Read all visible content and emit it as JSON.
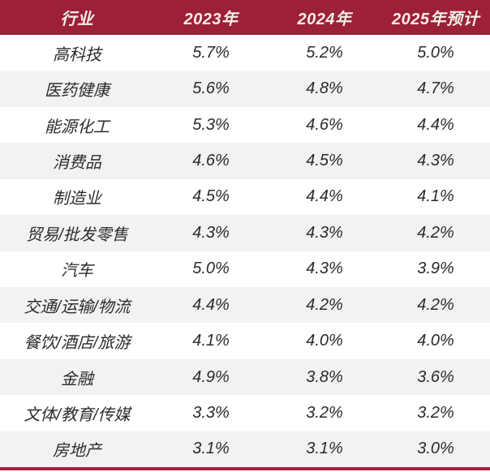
{
  "chart_data": {
    "type": "table",
    "title": "",
    "unit": "%",
    "columns": [
      "行业",
      "2023年",
      "2024年",
      "2025年预计"
    ],
    "rows": [
      [
        "高科技",
        "5.7%",
        "5.2%",
        "5.0%"
      ],
      [
        "医药健康",
        "5.6%",
        "4.8%",
        "4.7%"
      ],
      [
        "能源化工",
        "5.3%",
        "4.6%",
        "4.4%"
      ],
      [
        "消费品",
        "4.6%",
        "4.5%",
        "4.3%"
      ],
      [
        "制造业",
        "4.5%",
        "4.4%",
        "4.1%"
      ],
      [
        "贸易/批发零售",
        "4.3%",
        "4.3%",
        "4.2%"
      ],
      [
        "汽车",
        "5.0%",
        "4.3%",
        "3.9%"
      ],
      [
        "交通/运输/物流",
        "4.4%",
        "4.2%",
        "4.2%"
      ],
      [
        "餐饮/酒店/旅游",
        "4.1%",
        "4.0%",
        "4.0%"
      ],
      [
        "金融",
        "4.9%",
        "3.8%",
        "3.6%"
      ],
      [
        "文体/教育/传媒",
        "3.3%",
        "3.2%",
        "3.2%"
      ],
      [
        "房地产",
        "3.1%",
        "3.1%",
        "3.0%"
      ]
    ],
    "layout": {
      "zebra_striping": true,
      "header_style": "dark-red band, white bold italic text",
      "bottom_rule": "thick dark-red line"
    }
  },
  "colors": {
    "header_bg": "#9C2038",
    "header_text": "#F6EFEA",
    "row_alt_bg": "#F2F2F2",
    "body_text": "#2B2B2B",
    "accent_line": "#A6203E"
  }
}
